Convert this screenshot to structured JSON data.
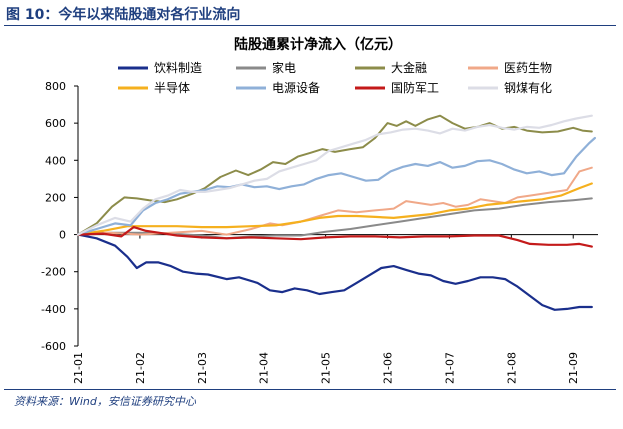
{
  "figure": {
    "label": "图 10：今年以来陆股通对各行业流向",
    "source": "资料来源：Wind，安信证券研究中心"
  },
  "chart_data": {
    "type": "line",
    "title": "陆股通累计净流入（亿元）",
    "xlabel": "",
    "ylabel": "",
    "ylim": [
      -600,
      800
    ],
    "yticks": [
      -600,
      -400,
      -200,
      0,
      200,
      400,
      600,
      800
    ],
    "x_tick_labels": [
      "21-01",
      "21-02",
      "21-03",
      "21-04",
      "21-05",
      "21-06",
      "21-07",
      "21-08",
      "21-09"
    ],
    "x_range_months": [
      0,
      8.4
    ],
    "grid": false,
    "legend_position": "top",
    "series": [
      {
        "name": "饮料制造",
        "color": "#1a2f8c",
        "width": 2.2,
        "points": [
          [
            0,
            0
          ],
          [
            0.3,
            -20
          ],
          [
            0.6,
            -60
          ],
          [
            0.8,
            -120
          ],
          [
            0.95,
            -180
          ],
          [
            1.1,
            -150
          ],
          [
            1.3,
            -150
          ],
          [
            1.5,
            -170
          ],
          [
            1.7,
            -200
          ],
          [
            1.9,
            -210
          ],
          [
            2.1,
            -215
          ],
          [
            2.4,
            -240
          ],
          [
            2.6,
            -230
          ],
          [
            2.9,
            -260
          ],
          [
            3.1,
            -300
          ],
          [
            3.3,
            -310
          ],
          [
            3.5,
            -290
          ],
          [
            3.7,
            -300
          ],
          [
            3.9,
            -320
          ],
          [
            4.1,
            -310
          ],
          [
            4.3,
            -300
          ],
          [
            4.5,
            -260
          ],
          [
            4.7,
            -220
          ],
          [
            4.9,
            -180
          ],
          [
            5.1,
            -170
          ],
          [
            5.3,
            -190
          ],
          [
            5.5,
            -210
          ],
          [
            5.7,
            -220
          ],
          [
            5.9,
            -250
          ],
          [
            6.1,
            -265
          ],
          [
            6.3,
            -250
          ],
          [
            6.5,
            -230
          ],
          [
            6.7,
            -230
          ],
          [
            6.9,
            -240
          ],
          [
            7.1,
            -280
          ],
          [
            7.3,
            -330
          ],
          [
            7.5,
            -380
          ],
          [
            7.7,
            -405
          ],
          [
            7.9,
            -400
          ],
          [
            8.1,
            -390
          ],
          [
            8.3,
            -390
          ]
        ]
      },
      {
        "name": "家电",
        "color": "#8a8a8a",
        "width": 2,
        "points": [
          [
            0,
            0
          ],
          [
            0.5,
            10
          ],
          [
            1.0,
            10
          ],
          [
            1.5,
            5
          ],
          [
            2.0,
            -5
          ],
          [
            2.4,
            -20
          ],
          [
            2.8,
            -10
          ],
          [
            3.2,
            -5
          ],
          [
            3.6,
            -5
          ],
          [
            4.0,
            15
          ],
          [
            4.4,
            30
          ],
          [
            4.8,
            50
          ],
          [
            5.2,
            70
          ],
          [
            5.6,
            90
          ],
          [
            6.0,
            110
          ],
          [
            6.4,
            130
          ],
          [
            6.8,
            140
          ],
          [
            7.2,
            160
          ],
          [
            7.6,
            175
          ],
          [
            8.0,
            185
          ],
          [
            8.3,
            195
          ]
        ]
      },
      {
        "name": "大金融",
        "color": "#8c8c4a",
        "width": 2,
        "points": [
          [
            0,
            0
          ],
          [
            0.3,
            60
          ],
          [
            0.55,
            150
          ],
          [
            0.75,
            200
          ],
          [
            0.95,
            195
          ],
          [
            1.15,
            185
          ],
          [
            1.4,
            175
          ],
          [
            1.6,
            190
          ],
          [
            1.85,
            220
          ],
          [
            2.05,
            250
          ],
          [
            2.3,
            310
          ],
          [
            2.55,
            345
          ],
          [
            2.75,
            320
          ],
          [
            2.95,
            350
          ],
          [
            3.15,
            390
          ],
          [
            3.35,
            380
          ],
          [
            3.55,
            420
          ],
          [
            3.75,
            440
          ],
          [
            3.95,
            460
          ],
          [
            4.15,
            445
          ],
          [
            4.4,
            460
          ],
          [
            4.6,
            470
          ],
          [
            4.8,
            520
          ],
          [
            5.0,
            600
          ],
          [
            5.15,
            585
          ],
          [
            5.3,
            610
          ],
          [
            5.45,
            585
          ],
          [
            5.65,
            620
          ],
          [
            5.85,
            640
          ],
          [
            6.05,
            600
          ],
          [
            6.25,
            570
          ],
          [
            6.45,
            580
          ],
          [
            6.65,
            600
          ],
          [
            6.85,
            570
          ],
          [
            7.05,
            580
          ],
          [
            7.25,
            560
          ],
          [
            7.5,
            550
          ],
          [
            7.75,
            555
          ],
          [
            8.0,
            575
          ],
          [
            8.15,
            560
          ],
          [
            8.3,
            555
          ]
        ]
      },
      {
        "name": "医药生物",
        "color": "#f0a888",
        "width": 2,
        "points": [
          [
            0,
            0
          ],
          [
            0.5,
            10
          ],
          [
            1.0,
            0
          ],
          [
            1.5,
            10
          ],
          [
            2.0,
            20
          ],
          [
            2.4,
            0
          ],
          [
            2.8,
            30
          ],
          [
            3.1,
            60
          ],
          [
            3.3,
            50
          ],
          [
            3.6,
            70
          ],
          [
            3.9,
            100
          ],
          [
            4.2,
            130
          ],
          [
            4.5,
            120
          ],
          [
            4.8,
            130
          ],
          [
            5.1,
            140
          ],
          [
            5.3,
            180
          ],
          [
            5.5,
            170
          ],
          [
            5.7,
            160
          ],
          [
            5.9,
            170
          ],
          [
            6.1,
            150
          ],
          [
            6.3,
            160
          ],
          [
            6.5,
            190
          ],
          [
            6.7,
            180
          ],
          [
            6.9,
            170
          ],
          [
            7.1,
            200
          ],
          [
            7.3,
            210
          ],
          [
            7.5,
            220
          ],
          [
            7.7,
            230
          ],
          [
            7.9,
            240
          ],
          [
            8.1,
            340
          ],
          [
            8.3,
            360
          ]
        ]
      },
      {
        "name": "半导体",
        "color": "#f5b01e",
        "width": 2.2,
        "points": [
          [
            0,
            0
          ],
          [
            0.4,
            20
          ],
          [
            0.8,
            45
          ],
          [
            1.2,
            45
          ],
          [
            1.6,
            45
          ],
          [
            2.0,
            40
          ],
          [
            2.4,
            40
          ],
          [
            2.8,
            45
          ],
          [
            3.2,
            50
          ],
          [
            3.6,
            70
          ],
          [
            3.9,
            90
          ],
          [
            4.2,
            100
          ],
          [
            4.5,
            100
          ],
          [
            4.8,
            95
          ],
          [
            5.1,
            90
          ],
          [
            5.4,
            100
          ],
          [
            5.7,
            110
          ],
          [
            6.0,
            130
          ],
          [
            6.3,
            140
          ],
          [
            6.6,
            160
          ],
          [
            6.9,
            170
          ],
          [
            7.2,
            180
          ],
          [
            7.5,
            190
          ],
          [
            7.8,
            210
          ],
          [
            8.1,
            250
          ],
          [
            8.3,
            275
          ]
        ]
      },
      {
        "name": "电源设备",
        "color": "#8fb0d8",
        "width": 2.2,
        "points": [
          [
            0,
            0
          ],
          [
            0.3,
            30
          ],
          [
            0.6,
            60
          ],
          [
            0.85,
            50
          ],
          [
            1.05,
            130
          ],
          [
            1.25,
            170
          ],
          [
            1.45,
            190
          ],
          [
            1.65,
            220
          ],
          [
            1.85,
            230
          ],
          [
            2.05,
            240
          ],
          [
            2.25,
            260
          ],
          [
            2.45,
            255
          ],
          [
            2.65,
            270
          ],
          [
            2.85,
            255
          ],
          [
            3.05,
            260
          ],
          [
            3.25,
            245
          ],
          [
            3.45,
            260
          ],
          [
            3.65,
            270
          ],
          [
            3.85,
            300
          ],
          [
            4.05,
            320
          ],
          [
            4.25,
            330
          ],
          [
            4.45,
            310
          ],
          [
            4.65,
            290
          ],
          [
            4.85,
            295
          ],
          [
            5.05,
            340
          ],
          [
            5.25,
            365
          ],
          [
            5.45,
            380
          ],
          [
            5.65,
            370
          ],
          [
            5.85,
            390
          ],
          [
            6.05,
            360
          ],
          [
            6.25,
            370
          ],
          [
            6.45,
            395
          ],
          [
            6.65,
            400
          ],
          [
            6.85,
            380
          ],
          [
            7.05,
            350
          ],
          [
            7.25,
            330
          ],
          [
            7.45,
            340
          ],
          [
            7.65,
            320
          ],
          [
            7.85,
            330
          ],
          [
            8.05,
            420
          ],
          [
            8.25,
            490
          ],
          [
            8.35,
            520
          ]
        ]
      },
      {
        "name": "国防军工",
        "color": "#c41a1a",
        "width": 2.2,
        "points": [
          [
            0,
            0
          ],
          [
            0.4,
            5
          ],
          [
            0.7,
            -10
          ],
          [
            0.9,
            40
          ],
          [
            1.1,
            20
          ],
          [
            1.3,
            10
          ],
          [
            1.6,
            -5
          ],
          [
            2.0,
            -15
          ],
          [
            2.4,
            -20
          ],
          [
            2.8,
            -15
          ],
          [
            3.2,
            -20
          ],
          [
            3.6,
            -25
          ],
          [
            4.0,
            -15
          ],
          [
            4.4,
            -10
          ],
          [
            4.8,
            -10
          ],
          [
            5.2,
            -15
          ],
          [
            5.6,
            -10
          ],
          [
            6.0,
            -10
          ],
          [
            6.4,
            -5
          ],
          [
            6.8,
            -5
          ],
          [
            7.1,
            -30
          ],
          [
            7.3,
            -50
          ],
          [
            7.6,
            -55
          ],
          [
            7.9,
            -55
          ],
          [
            8.1,
            -50
          ],
          [
            8.3,
            -65
          ]
        ]
      },
      {
        "name": "钢煤有化",
        "color": "#dcdde6",
        "width": 2.2,
        "points": [
          [
            0,
            0
          ],
          [
            0.3,
            50
          ],
          [
            0.6,
            90
          ],
          [
            0.85,
            70
          ],
          [
            1.05,
            140
          ],
          [
            1.25,
            190
          ],
          [
            1.45,
            210
          ],
          [
            1.65,
            240
          ],
          [
            1.85,
            230
          ],
          [
            2.05,
            230
          ],
          [
            2.25,
            240
          ],
          [
            2.45,
            250
          ],
          [
            2.65,
            270
          ],
          [
            2.85,
            290
          ],
          [
            3.05,
            300
          ],
          [
            3.25,
            340
          ],
          [
            3.45,
            360
          ],
          [
            3.65,
            380
          ],
          [
            3.85,
            400
          ],
          [
            4.05,
            450
          ],
          [
            4.25,
            470
          ],
          [
            4.45,
            490
          ],
          [
            4.65,
            510
          ],
          [
            4.85,
            540
          ],
          [
            5.05,
            550
          ],
          [
            5.25,
            565
          ],
          [
            5.45,
            570
          ],
          [
            5.65,
            560
          ],
          [
            5.85,
            545
          ],
          [
            6.05,
            570
          ],
          [
            6.25,
            560
          ],
          [
            6.45,
            580
          ],
          [
            6.65,
            590
          ],
          [
            6.85,
            575
          ],
          [
            7.05,
            565
          ],
          [
            7.25,
            580
          ],
          [
            7.45,
            575
          ],
          [
            7.65,
            590
          ],
          [
            7.85,
            610
          ],
          [
            8.05,
            625
          ],
          [
            8.3,
            640
          ]
        ]
      }
    ]
  }
}
